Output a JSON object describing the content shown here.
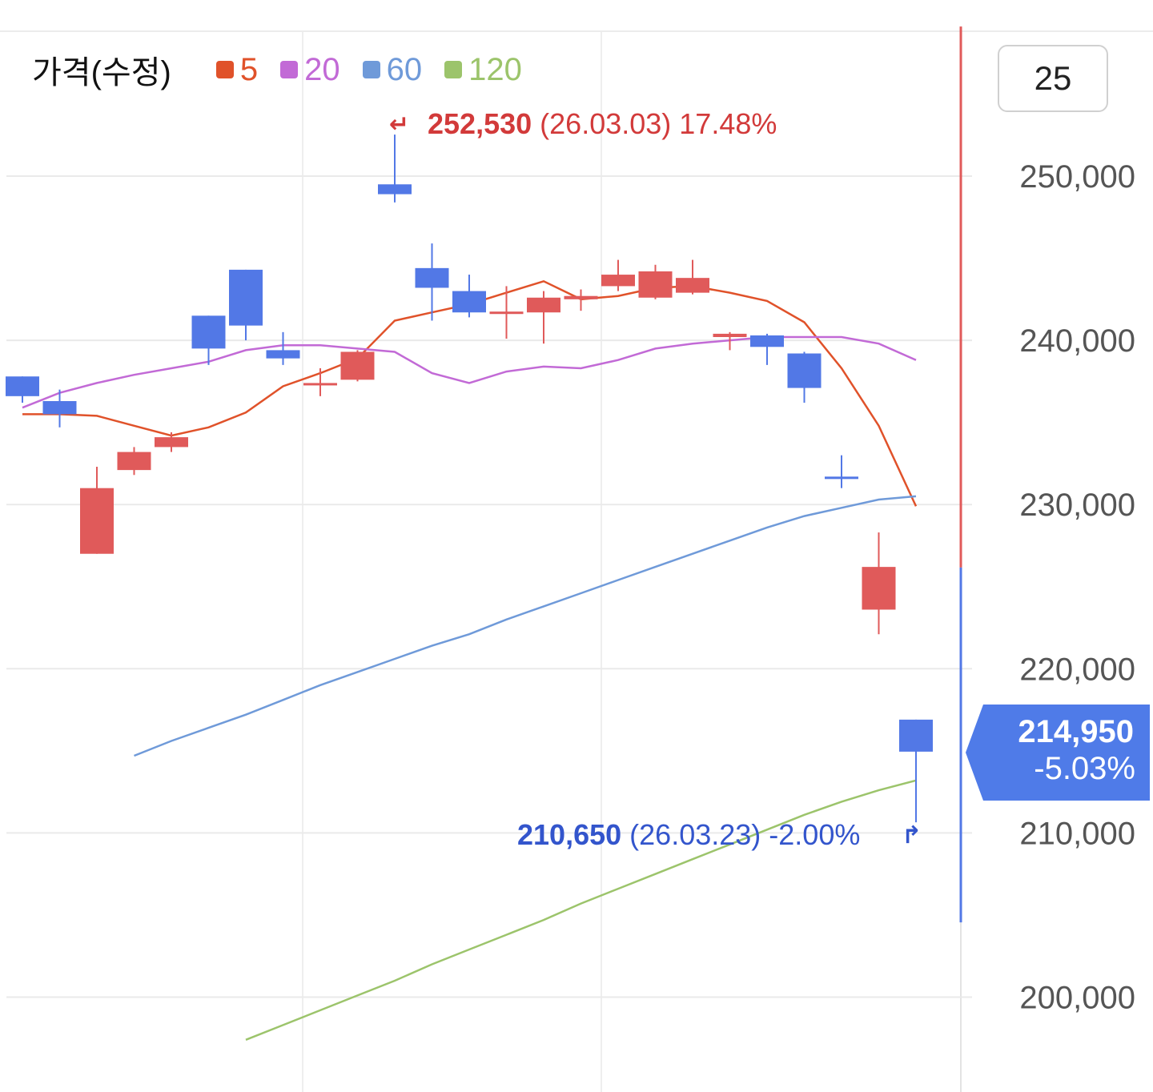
{
  "legend": {
    "title": "가격(수정)",
    "items": [
      {
        "label": "5",
        "color": "#e0522a"
      },
      {
        "label": "20",
        "color": "#c26ad6"
      },
      {
        "label": "60",
        "color": "#6f9ad9"
      },
      {
        "label": "120",
        "color": "#9cc46b"
      }
    ]
  },
  "period_button": {
    "label": "25"
  },
  "current_price": {
    "price": "214,950",
    "change": "-5.03%",
    "color": "#4f7be8"
  },
  "high_annotation": {
    "price": "252,530",
    "date": "(26.03.03)",
    "change": "17.48%",
    "arrow": "↵",
    "color": "#d23a3a"
  },
  "low_annotation": {
    "price": "210,650",
    "date": "(26.03.23)",
    "change": "-2.00%",
    "arrow": "↱",
    "color": "#3355cc"
  },
  "chart_data": {
    "type": "candlestick",
    "y_ticks": [
      250000,
      240000,
      230000,
      220000,
      210000,
      200000
    ],
    "y_tick_labels": [
      "250,000",
      "240,000",
      "230,000",
      "220,000",
      "210,000",
      "200,000"
    ],
    "ylim": [
      194500,
      260000
    ],
    "grid": true,
    "up_color": "#e05a5a",
    "down_color": "#5278e6",
    "candles": [
      {
        "open": 237800,
        "close": 236600,
        "high": 237800,
        "low": 236200,
        "dir": "down"
      },
      {
        "open": 236300,
        "close": 235500,
        "high": 237000,
        "low": 234700,
        "dir": "down"
      },
      {
        "open": 227000,
        "close": 231000,
        "high": 232300,
        "low": 227000,
        "dir": "up"
      },
      {
        "open": 232100,
        "close": 233200,
        "high": 233500,
        "low": 231800,
        "dir": "up"
      },
      {
        "open": 233500,
        "close": 234100,
        "high": 234400,
        "low": 233200,
        "dir": "up"
      },
      {
        "open": 241500,
        "close": 239500,
        "high": 241500,
        "low": 238500,
        "dir": "down"
      },
      {
        "open": 244300,
        "close": 240900,
        "high": 244300,
        "low": 240000,
        "dir": "down"
      },
      {
        "open": 239400,
        "close": 238900,
        "high": 240500,
        "low": 238500,
        "dir": "down"
      },
      {
        "open": 237300,
        "close": 237400,
        "high": 238300,
        "low": 236600,
        "dir": "up"
      },
      {
        "open": 237600,
        "close": 239300,
        "high": 239400,
        "low": 237500,
        "dir": "up"
      },
      {
        "open": 249500,
        "close": 248900,
        "high": 252530,
        "low": 248400,
        "dir": "down"
      },
      {
        "open": 244400,
        "close": 243200,
        "high": 245900,
        "low": 241200,
        "dir": "down"
      },
      {
        "open": 243000,
        "close": 241700,
        "high": 244000,
        "low": 241400,
        "dir": "down"
      },
      {
        "open": 241650,
        "close": 241750,
        "high": 243300,
        "low": 240100,
        "dir": "up"
      },
      {
        "open": 241700,
        "close": 242600,
        "high": 243000,
        "low": 239800,
        "dir": "up"
      },
      {
        "open": 242500,
        "close": 242700,
        "high": 243100,
        "low": 241800,
        "dir": "up"
      },
      {
        "open": 243300,
        "close": 244000,
        "high": 244900,
        "low": 243000,
        "dir": "up"
      },
      {
        "open": 242600,
        "close": 244200,
        "high": 244600,
        "low": 242500,
        "dir": "up"
      },
      {
        "open": 242900,
        "close": 243800,
        "high": 244900,
        "low": 242800,
        "dir": "up"
      },
      {
        "open": 240200,
        "close": 240400,
        "high": 240500,
        "low": 239400,
        "dir": "up"
      },
      {
        "open": 240300,
        "close": 239600,
        "high": 240400,
        "low": 238500,
        "dir": "down"
      },
      {
        "open": 239200,
        "close": 237100,
        "high": 239300,
        "low": 236200,
        "dir": "down"
      },
      {
        "open": 231700,
        "close": 231600,
        "high": 233000,
        "low": 231000,
        "dir": "down"
      },
      {
        "open": 223600,
        "close": 226200,
        "high": 228300,
        "low": 222100,
        "dir": "up"
      },
      {
        "open": 216900,
        "close": 214950,
        "high": 216900,
        "low": 210650,
        "dir": "down"
      }
    ],
    "series": [
      {
        "name": "5",
        "color": "#e0522a",
        "values": [
          235500,
          235500,
          235400,
          234800,
          234200,
          234700,
          235600,
          237200,
          238000,
          238900,
          241200,
          241700,
          242200,
          242900,
          243600,
          242500,
          242700,
          243200,
          243300,
          242900,
          242400,
          241100,
          238300,
          234800,
          229900
        ]
      },
      {
        "name": "20",
        "color": "#c26ad6",
        "values": [
          235900,
          236800,
          237400,
          237900,
          238300,
          238700,
          239400,
          239700,
          239700,
          239500,
          239300,
          238000,
          237400,
          238100,
          238400,
          238300,
          238800,
          239500,
          239800,
          240000,
          240200,
          240200,
          240200,
          239800,
          238800
        ]
      },
      {
        "name": "60",
        "color": "#6f9ad9",
        "values": [
          214700,
          215600,
          216400,
          217200,
          218100,
          219000,
          219800,
          220600,
          221400,
          222100,
          223000,
          223800,
          224600,
          225400,
          226200,
          227000,
          227800,
          228600,
          229300,
          229800,
          230300,
          230500
        ]
      },
      {
        "name": "120",
        "color": "#9cc46b",
        "values": [
          197400,
          198300,
          199200,
          200100,
          201000,
          202000,
          202900,
          203800,
          204700,
          205700,
          206600,
          207500,
          208400,
          209300,
          210200,
          211100,
          211900,
          212600,
          213200
        ]
      }
    ]
  }
}
